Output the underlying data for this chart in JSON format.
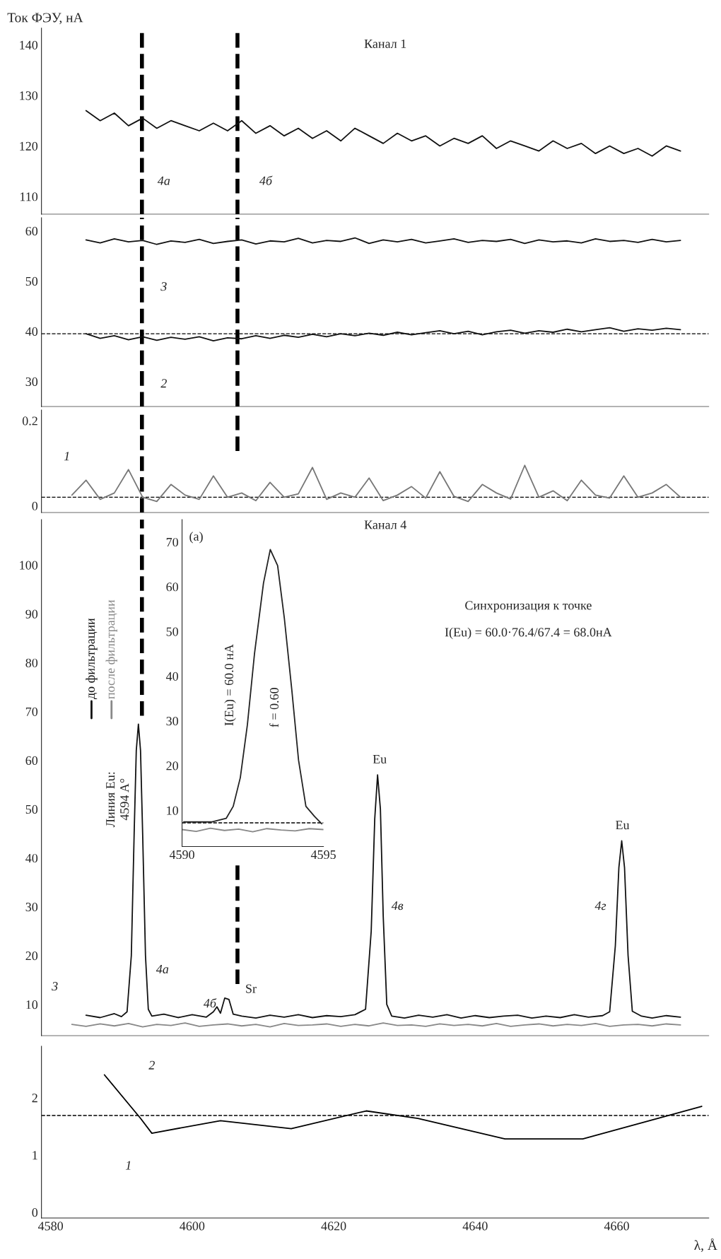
{
  "chart_data": [
    {
      "type": "line",
      "ylabel": "Ток ФЭУ, нА",
      "xlim": [
        4578.7,
        4673
      ],
      "ylim": [
        106.5,
        143.3
      ],
      "yticks": [
        110,
        120,
        130,
        140
      ],
      "tick_labels": "y",
      "series": [
        {
          "color": "#111111",
          "x": [
            4585,
            4587,
            4589,
            4591,
            4593,
            4595,
            4597,
            4599,
            4601,
            4603,
            4605,
            4607,
            4609,
            4611,
            4613,
            4615,
            4617,
            4619,
            4621,
            4623,
            4625,
            4627,
            4629,
            4631,
            4633,
            4635,
            4637,
            4639,
            4641,
            4643,
            4645,
            4647,
            4649,
            4651,
            4653,
            4655,
            4657,
            4659,
            4661,
            4663,
            4665,
            4667,
            4669
          ],
          "values": [
            127,
            125,
            126.5,
            124,
            125.5,
            123.5,
            125,
            124,
            123,
            124.5,
            123,
            125,
            122.5,
            124,
            122,
            123.5,
            121.5,
            123,
            121,
            123.5,
            122,
            120.5,
            122.5,
            121,
            122,
            120,
            121.5,
            120.5,
            122,
            119.5,
            121,
            120,
            119,
            121,
            119.5,
            120.5,
            118.5,
            120,
            118.5,
            119.5,
            118,
            120,
            119
          ]
        }
      ],
      "ref_lines": [
        {
          "axis": "x",
          "value": 4592.9,
          "line_style": "dashed",
          "color": "#000000"
        },
        {
          "axis": "x",
          "value": 4606.4,
          "line_style": "dashed",
          "color": "#000000"
        }
      ],
      "annotations": [
        "Канал 1",
        "4а",
        "4б"
      ]
    },
    {
      "type": "line",
      "xlim": [
        4578.7,
        4673
      ],
      "ylim": [
        25,
        62.6
      ],
      "yticks": [
        30,
        40,
        50,
        60
      ],
      "tick_labels": "y",
      "series": [
        {
          "color": "#111111",
          "x": [
            4585,
            4587,
            4589,
            4591,
            4593,
            4595,
            4597,
            4599,
            4601,
            4603,
            4605,
            4607,
            4609,
            4611,
            4613,
            4615,
            4617,
            4619,
            4621,
            4623,
            4625,
            4627,
            4629,
            4631,
            4633,
            4635,
            4637,
            4639,
            4641,
            4643,
            4645,
            4647,
            4649,
            4651,
            4653,
            4655,
            4657,
            4659,
            4661,
            4663,
            4665,
            4667,
            4669
          ],
          "values": [
            58.2,
            57.6,
            58.4,
            57.8,
            58.1,
            57.3,
            58,
            57.7,
            58.3,
            57.5,
            57.9,
            58.2,
            57.4,
            58,
            57.8,
            58.5,
            57.6,
            58.1,
            57.9,
            58.6,
            57.5,
            58.2,
            57.8,
            58.3,
            57.6,
            58,
            58.4,
            57.7,
            58.1,
            57.9,
            58.3,
            57.5,
            58.2,
            57.8,
            58,
            57.6,
            58.4,
            57.9,
            58.1,
            57.7,
            58.3,
            57.8,
            58.1
          ]
        },
        {
          "color": "#111111",
          "x": [
            4585,
            4587,
            4589,
            4591,
            4593,
            4595,
            4597,
            4599,
            4601,
            4603,
            4605,
            4607,
            4609,
            4611,
            4613,
            4615,
            4617,
            4619,
            4621,
            4623,
            4625,
            4627,
            4629,
            4631,
            4633,
            4635,
            4637,
            4639,
            4641,
            4643,
            4645,
            4647,
            4649,
            4651,
            4653,
            4655,
            4657,
            4659,
            4661,
            4663,
            4665,
            4667,
            4669
          ],
          "values": [
            39.5,
            38.6,
            39.1,
            38.3,
            38.9,
            38.2,
            38.8,
            38.4,
            38.9,
            38.1,
            38.7,
            38.5,
            39.1,
            38.6,
            39.2,
            38.8,
            39.4,
            38.9,
            39.5,
            39.1,
            39.6,
            39.2,
            39.8,
            39.3,
            39.7,
            40.1,
            39.5,
            40,
            39.3,
            39.9,
            40.2,
            39.6,
            40.1,
            39.8,
            40.4,
            39.9,
            40.3,
            40.7,
            40,
            40.5,
            40.2,
            40.6,
            40.3
          ]
        }
      ],
      "ref_lines": [
        {
          "axis": "x",
          "value": 4592.9,
          "line_style": "dashed",
          "color": "#000000"
        },
        {
          "axis": "x",
          "value": 4606.4,
          "line_style": "dashed",
          "color": "#000000"
        },
        {
          "axis": "y",
          "value": 39.5,
          "line_style": "dashed",
          "color": "#000000"
        }
      ],
      "annotations": [
        "3",
        "2"
      ]
    },
    {
      "type": "line",
      "xlim": [
        4578.7,
        4673
      ],
      "ylim": [
        -0.016,
        0.225
      ],
      "yticks": [
        0,
        0.2
      ],
      "tick_labels": "y",
      "series": [
        {
          "color": "#777777",
          "x": [
            4583,
            4585,
            4587,
            4589,
            4591,
            4593,
            4595,
            4597,
            4599,
            4601,
            4603,
            4605,
            4607,
            4609,
            4611,
            4613,
            4615,
            4617,
            4619,
            4621,
            4623,
            4625,
            4627,
            4629,
            4631,
            4633,
            4635,
            4637,
            4639,
            4641,
            4643,
            4645,
            4647,
            4649,
            4651,
            4653,
            4655,
            4657,
            4659,
            4661,
            4663,
            4665,
            4667,
            4669
          ],
          "values": [
            0.025,
            0.06,
            0.015,
            0.03,
            0.085,
            0.02,
            0.01,
            0.05,
            0.025,
            0.015,
            0.07,
            0.02,
            0.03,
            0.012,
            0.055,
            0.02,
            0.028,
            0.09,
            0.015,
            0.03,
            0.02,
            0.065,
            0.012,
            0.025,
            0.045,
            0.018,
            0.08,
            0.022,
            0.01,
            0.05,
            0.03,
            0.016,
            0.095,
            0.02,
            0.035,
            0.012,
            0.06,
            0.025,
            0.018,
            0.07,
            0.02,
            0.03,
            0.05,
            0.02
          ]
        }
      ],
      "ref_lines": [
        {
          "axis": "x",
          "value": 4592.9,
          "line_style": "dashed",
          "color": "#000000"
        },
        {
          "axis": "x",
          "value": 4606.4,
          "line_style": "dashed",
          "color": "#000000"
        },
        {
          "axis": "y",
          "value": 0.02,
          "line_style": "dashed",
          "color": "#000000"
        }
      ],
      "annotations": [
        "1"
      ]
    },
    {
      "type": "line",
      "xlim": [
        4578.7,
        4673
      ],
      "ylim": [
        3.6,
        109.3
      ],
      "yticks": [
        10,
        20,
        30,
        40,
        50,
        60,
        70,
        80,
        90,
        100
      ],
      "tick_labels": "y",
      "series": [
        {
          "name": "до фильтрации",
          "color": "#111111",
          "x": [
            4585,
            4587,
            4589,
            4590,
            4590.8,
            4591.4,
            4591.8,
            4592.1,
            4592.4,
            4592.7,
            4593,
            4593.4,
            4593.8,
            4594.3,
            4596,
            4598,
            4600,
            4602,
            4603,
            4603.5,
            4604,
            4604.6,
            4605.2,
            4605.8,
            4607,
            4609,
            4611,
            4613,
            4615,
            4617,
            4619,
            4621,
            4623,
            4624.5,
            4625.3,
            4625.8,
            4626.2,
            4626.6,
            4627,
            4627.5,
            4628.2,
            4630,
            4632,
            4634,
            4636,
            4638,
            4640,
            4642,
            4644,
            4646,
            4648,
            4650,
            4652,
            4654,
            4656,
            4658,
            4659,
            4659.8,
            4660.3,
            4660.7,
            4661.1,
            4661.6,
            4662.2,
            4663.5,
            4665,
            4667,
            4669
          ],
          "values": [
            7.8,
            7.3,
            8.1,
            7.5,
            8.5,
            20,
            45,
            62,
            67.4,
            62,
            45,
            20,
            9,
            7.6,
            8,
            7.3,
            7.9,
            7.4,
            8.5,
            9.5,
            8.2,
            11.3,
            11,
            8,
            7.6,
            7.2,
            7.8,
            7.4,
            7.9,
            7.3,
            7.7,
            7.5,
            7.9,
            9,
            25,
            48,
            57,
            50,
            28,
            10,
            7.6,
            7.2,
            7.8,
            7.4,
            7.9,
            7.2,
            7.7,
            7.3,
            7.6,
            7.8,
            7.2,
            7.6,
            7.3,
            7.9,
            7.4,
            7.7,
            8.5,
            22,
            38,
            43.5,
            38,
            20,
            8.6,
            7.6,
            7.2,
            7.7,
            7.4
          ]
        },
        {
          "name": "после фильтрации",
          "color": "#888888",
          "x": [
            4583,
            4585,
            4587,
            4589,
            4591,
            4593,
            4595,
            4597,
            4599,
            4601,
            4603,
            4605,
            4607,
            4609,
            4611,
            4613,
            4615,
            4617,
            4619,
            4621,
            4623,
            4625,
            4627,
            4629,
            4631,
            4633,
            4635,
            4637,
            4639,
            4641,
            4643,
            4645,
            4647,
            4649,
            4651,
            4653,
            4655,
            4657,
            4659,
            4661,
            4663,
            4665,
            4667,
            4669
          ],
          "values": [
            5.9,
            5.5,
            6,
            5.6,
            6.1,
            5.4,
            5.9,
            5.7,
            6.2,
            5.5,
            5.8,
            6,
            5.6,
            5.9,
            5.4,
            6.1,
            5.7,
            5.8,
            6,
            5.5,
            5.9,
            5.6,
            6.2,
            5.7,
            5.8,
            5.5,
            6,
            5.7,
            5.9,
            5.6,
            6.1,
            5.5,
            5.8,
            6,
            5.6,
            5.9,
            5.7,
            6.1,
            5.5,
            5.8,
            5.9,
            5.6,
            6,
            5.8
          ]
        }
      ],
      "ref_lines": [
        {
          "axis": "x",
          "value": 4592.9,
          "line_style": "dashed",
          "color": "#000000"
        },
        {
          "axis": "x",
          "value": 4606.4,
          "line_style": "dashed",
          "color": "#000000"
        }
      ],
      "annotations": [
        "Канал 4",
        "Синхронизация к точке",
        "I(Eu) = 60.0·76.4/67.4 = 68.0нА",
        "Линия Eu:",
        "4594 A°",
        "Eu",
        "Eu",
        "Sr",
        "4а",
        "4б",
        "4в",
        "4г",
        "3"
      ]
    },
    {
      "type": "line",
      "xlabel": "λ, Å",
      "xlim": [
        4578.7,
        4673
      ],
      "ylim": [
        -0.1,
        2.9
      ],
      "yticks": [
        0,
        1,
        2
      ],
      "xticks": [
        4580,
        4600,
        4620,
        4640,
        4660
      ],
      "series": [
        {
          "color": "#000000",
          "x": [
            4587.6,
            4592.7,
            4594.3,
            4604,
            4614,
            4624.6,
            4631.9,
            4644.2,
            4655.2,
            4672
          ],
          "values": [
            2.4,
            1.64,
            1.38,
            1.6,
            1.46,
            1.77,
            1.64,
            1.28,
            1.28,
            1.85
          ]
        }
      ],
      "ref_lines": [
        {
          "axis": "y",
          "value": 1.69,
          "line_style": "dashed",
          "color": "#000000"
        }
      ],
      "annotations": [
        "2",
        "1"
      ]
    },
    {
      "type": "line",
      "xlim": [
        4590,
        4595
      ],
      "ylim": [
        1.9,
        75
      ],
      "xticks": [
        4590,
        4595
      ],
      "yticks": [
        10,
        20,
        30,
        40,
        50,
        60,
        70
      ],
      "series": [
        {
          "color": "#222222",
          "x": [
            4590.06,
            4591.06,
            4591.56,
            4591.81,
            4592.06,
            4592.31,
            4592.56,
            4592.88,
            4593.12,
            4593.38,
            4593.62,
            4593.88,
            4594.12,
            4594.38,
            4594.69,
            4594.94
          ],
          "values": [
            7.4,
            7.4,
            8.2,
            10.9,
            17.3,
            29.1,
            44.9,
            60.8,
            68.3,
            64.7,
            52.8,
            37,
            21.2,
            10.9,
            8.6,
            7
          ]
        },
        {
          "color": "#888888",
          "x": [
            4590,
            4590.5,
            4591,
            4591.5,
            4592,
            4592.5,
            4593,
            4593.5,
            4594,
            4594.5,
            4595
          ],
          "values": [
            5.7,
            5.3,
            6,
            5.5,
            5.8,
            5.2,
            5.9,
            5.6,
            5.4,
            5.9,
            5.7
          ]
        }
      ],
      "ref_lines": [
        {
          "axis": "y",
          "value": 7.2,
          "line_style": "dashed",
          "color": "#000000"
        }
      ],
      "annotations": [
        "(a)",
        "I(Eu) = 60.0 нА",
        "f = 0.60"
      ]
    }
  ]
}
